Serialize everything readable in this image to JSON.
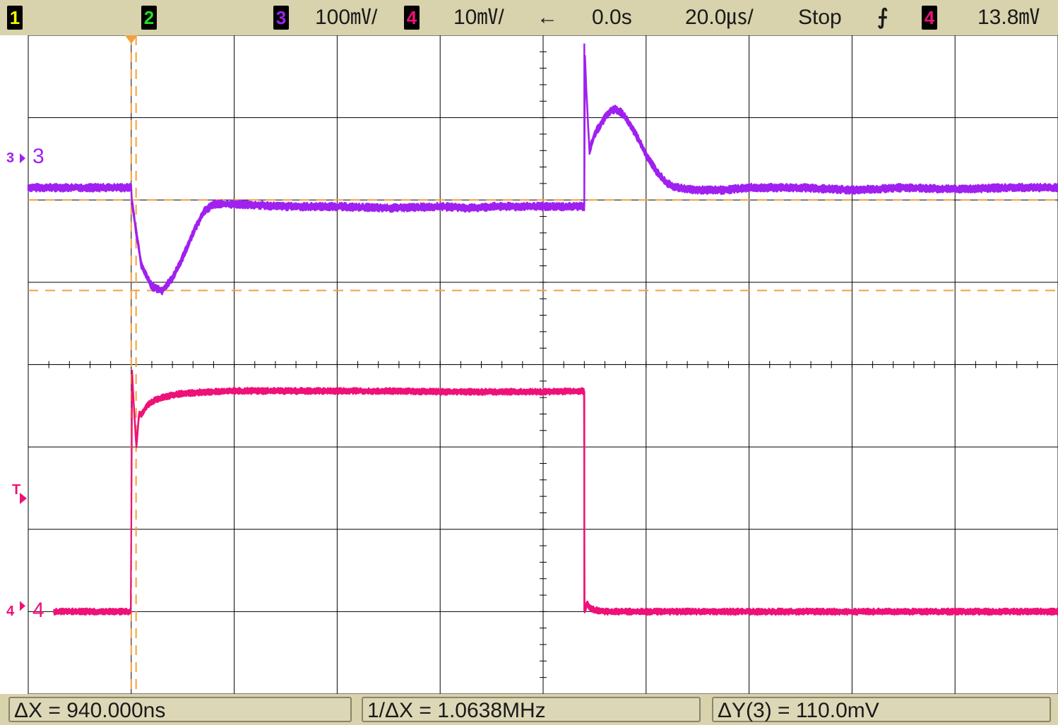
{
  "topbar": {
    "ch1_badge": "1",
    "ch2_badge": "2",
    "ch3_badge": "3",
    "ch3_scale": "100㎷/",
    "ch4_badge": "4",
    "ch4_scale": "10㎷/",
    "arrow_icon": "left-arrow-icon",
    "arrow": "←",
    "delay": "0.0s",
    "timebase": "20.0㎲/",
    "run_state": "Stop",
    "trigger_edge_icon": "rising-edge-icon",
    "trigger_edge": "⨍",
    "trig_src_badge": "4",
    "trig_level": "13.8㎷"
  },
  "markers": {
    "ch3_marker": "3",
    "ch3_label": "3",
    "ch4_marker": "4",
    "ch4_label": "4",
    "trigger_marker": "T"
  },
  "measurements": {
    "delta_x": "ΔX = 940.000ns",
    "inv_delta_x": "1/ΔX = 1.0638MHz",
    "delta_y": "ΔY(3) = 110.0mV"
  },
  "colors": {
    "bar": "#d8d2ad",
    "ch1": "#f5f500",
    "ch2": "#22dd22",
    "ch3": "#a020f0",
    "ch4": "#ee1177",
    "cursor": "#f0a040",
    "grid": "#000000"
  },
  "chart_data": {
    "type": "line",
    "title": "",
    "xlabel": "",
    "ylabel": "",
    "x_unit": "µs",
    "divisions_x": 10,
    "divisions_y": 8,
    "time_per_div_us": 20.0,
    "x_range_us": [
      -100,
      100
    ],
    "grid": true,
    "series": [
      {
        "name": "3",
        "volts_per_div_mV": 100,
        "x_us": [
          -100,
          -80,
          -79.9,
          -79,
          -78,
          -76,
          -74,
          -72,
          -70,
          -68,
          -66,
          -64,
          -60,
          -50,
          -40,
          -30,
          -20,
          -14,
          -10,
          -5,
          -1,
          0,
          5,
          8,
          8.01,
          8.5,
          9,
          10,
          12,
          13,
          14,
          15,
          16,
          18,
          20,
          22,
          24,
          26,
          28,
          30,
          35,
          40,
          50,
          60,
          70,
          80,
          90,
          100
        ],
        "y_mV": [
          15,
          15,
          0,
          -40,
          -80,
          -105,
          -110,
          -95,
          -70,
          -40,
          -15,
          -5,
          -5,
          -8,
          -8,
          -10,
          -8,
          -10,
          -8,
          -8,
          -8,
          -8,
          -8,
          -8,
          190,
          120,
          60,
          80,
          100,
          108,
          110,
          107,
          100,
          80,
          55,
          35,
          20,
          15,
          13,
          12,
          12,
          15,
          15,
          12,
          15,
          13,
          15,
          15
        ],
        "noise_mV": 5
      },
      {
        "name": "4",
        "volts_per_div_mV": 10,
        "x_us": [
          -100,
          -80,
          -79.9,
          -79.5,
          -79,
          -78.5,
          -78,
          -77,
          -76,
          -74,
          -72,
          -70,
          -65,
          -60,
          -50,
          -40,
          -30,
          -20,
          -10,
          0,
          8,
          8.01,
          8.5,
          9,
          10,
          12,
          20,
          30,
          40,
          50,
          60,
          70,
          80,
          90,
          100
        ],
        "y_mV": [
          0,
          0,
          30,
          25,
          20,
          24,
          24,
          25,
          25.5,
          26,
          26.3,
          26.5,
          26.7,
          26.8,
          26.8,
          26.8,
          26.8,
          26.7,
          26.7,
          26.7,
          26.8,
          0,
          1,
          0.5,
          0.2,
          0,
          0,
          0,
          0,
          0,
          0,
          0,
          0,
          0,
          0
        ],
        "noise_mV": 0.4
      }
    ],
    "reference_levels": {
      "ch3_ground_div_from_top": 2.0,
      "ch4_ground_div_from_top": 7.0
    },
    "cursors": {
      "x1_us": -80,
      "x2_us": -79.06,
      "y1_ch3_mV": 0,
      "y2_ch3_mV": -110
    }
  }
}
